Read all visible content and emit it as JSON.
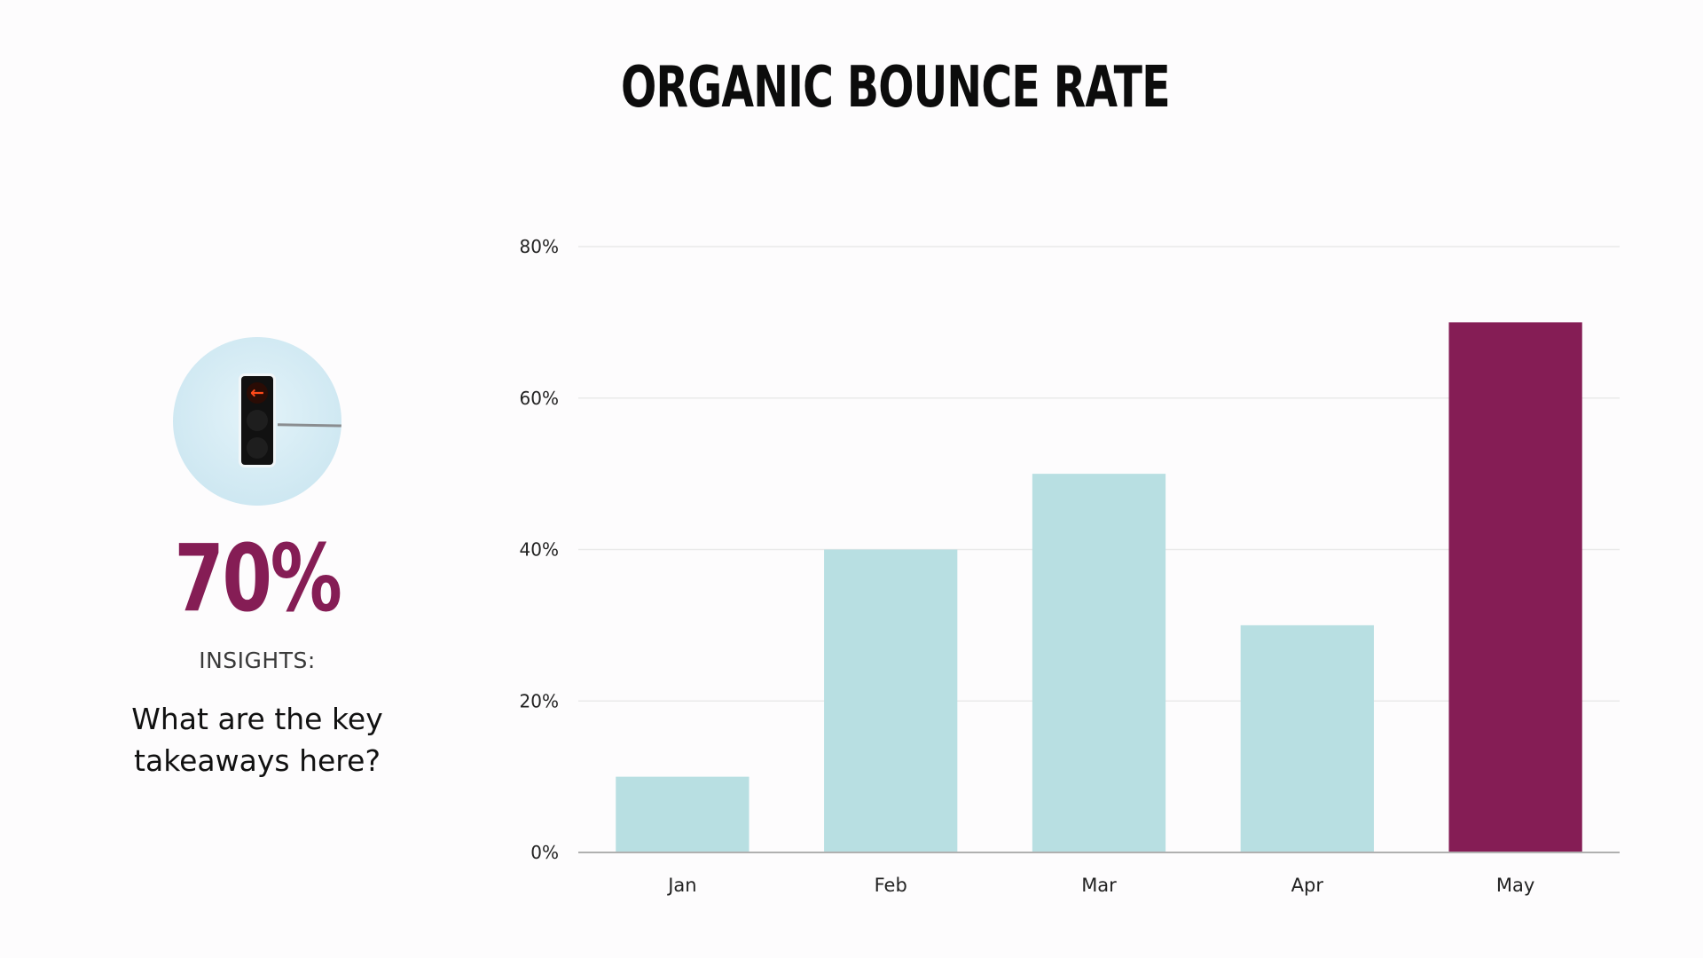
{
  "title": "ORGANIC BOUNCE RATE",
  "side_panel": {
    "icon": "traffic-light-icon",
    "highlight_value": "70%",
    "insights_label": "INSIGHTS:",
    "insights_text_line1": "What are the key",
    "insights_text_line2": "takeaways here?"
  },
  "colors": {
    "default_bar": "#b8dfe2",
    "highlight_bar": "#851d55",
    "highlight_text": "#851d55",
    "gridline": "#eaeaea",
    "axis": "#b0b0b0"
  },
  "chart_data": {
    "type": "bar",
    "categories": [
      "Jan",
      "Feb",
      "Mar",
      "Apr",
      "May"
    ],
    "values": [
      10,
      40,
      50,
      30,
      70
    ],
    "highlight_index": 4,
    "title": "ORGANIC BOUNCE RATE",
    "xlabel": "",
    "ylabel": "",
    "ylim": [
      0,
      80
    ],
    "yticks": [
      0,
      20,
      40,
      60,
      80
    ],
    "ytick_labels": [
      "0%",
      "20%",
      "40%",
      "60%",
      "80%"
    ],
    "grid": true,
    "legend": "none"
  }
}
